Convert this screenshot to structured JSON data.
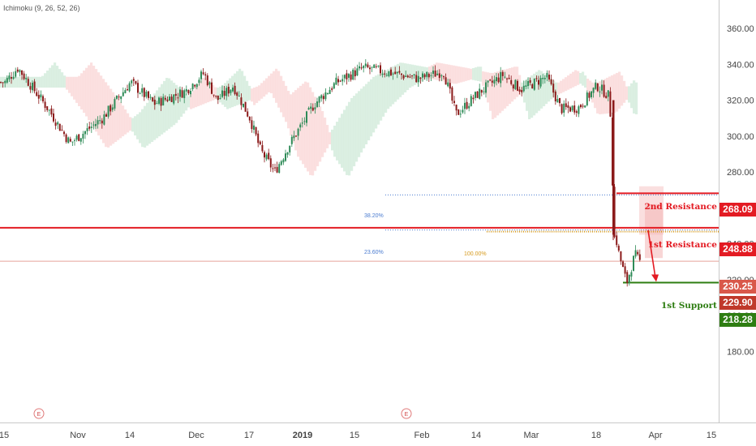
{
  "indicator": {
    "label": "Ichimoku (9, 26, 52, 26)"
  },
  "price_axis": {
    "ticks": [
      "360.00",
      "340.00",
      "320.00",
      "300.00",
      "280.00",
      "260.00",
      "240.00",
      "220.00",
      "200.00",
      "180.00"
    ],
    "tick_values": [
      360,
      340,
      320,
      300,
      280,
      260,
      240,
      220,
      200,
      180
    ]
  },
  "time_axis": {
    "labels": [
      "15",
      "Nov",
      "14",
      "Dec",
      "17",
      "2019",
      "15",
      "Feb",
      "14",
      "Mar",
      "18",
      "Apr",
      "15"
    ],
    "bold_label": "2019"
  },
  "levels": {
    "resistance_2": {
      "label": "2nd Resistance",
      "price": "268.09",
      "value": 268.09,
      "color": "#e31b23"
    },
    "resistance_1": {
      "label": "1st Resistance",
      "price": "248.88",
      "value": 248.88,
      "color": "#e31b23"
    },
    "support_1": {
      "label": "1st Support",
      "price": "218.28",
      "value": 218.28,
      "color": "#2e7d12"
    }
  },
  "current_prices": {
    "last": "230.25",
    "last_value": 230.25,
    "last_color": "#d9584a",
    "close": "229.90",
    "close_value": 229.9,
    "close_color": "#c0392b"
  },
  "fibonacci": {
    "fib_38": {
      "label": "38.20%",
      "value": 267.2,
      "color": "#4a7bd0"
    },
    "fib_23": {
      "label": "23.60%",
      "value": 247.6,
      "color": "#4a7bd0"
    },
    "fib_100": {
      "label": "100.00%",
      "value": 247.6,
      "color": "#d69a1e"
    }
  },
  "event_markers": [
    "E",
    "E"
  ],
  "colors": {
    "up": "#2e8b57",
    "down": "#8b1a1a",
    "cloud_bull": "#cfe9d8",
    "cloud_bear": "#f9d5d5"
  },
  "chart_data": {
    "type": "candlestick",
    "ylim": [
      160,
      375
    ],
    "approx_close_path": [
      {
        "t": "Oct 15",
        "v": 330
      },
      {
        "t": "Oct 18",
        "v": 338
      },
      {
        "t": "Oct 25",
        "v": 315
      },
      {
        "t": "Oct 30",
        "v": 296
      },
      {
        "t": "Nov 7",
        "v": 310
      },
      {
        "t": "Nov 14",
        "v": 330
      },
      {
        "t": "Nov 20",
        "v": 318
      },
      {
        "t": "Nov 28",
        "v": 325
      },
      {
        "t": "Dec 3",
        "v": 335
      },
      {
        "t": "Dec 7",
        "v": 320
      },
      {
        "t": "Dec 12",
        "v": 328
      },
      {
        "t": "Dec 17",
        "v": 310
      },
      {
        "t": "Dec 20",
        "v": 292
      },
      {
        "t": "Dec 24",
        "v": 280
      },
      {
        "t": "Dec 28",
        "v": 295
      },
      {
        "t": "Jan 4",
        "v": 318
      },
      {
        "t": "Jan 10",
        "v": 330
      },
      {
        "t": "Jan 17",
        "v": 338
      },
      {
        "t": "Jan 24",
        "v": 335
      },
      {
        "t": "Jan 30",
        "v": 332
      },
      {
        "t": "Feb 5",
        "v": 336
      },
      {
        "t": "Feb 8",
        "v": 312
      },
      {
        "t": "Feb 14",
        "v": 325
      },
      {
        "t": "Feb 20",
        "v": 334
      },
      {
        "t": "Feb 25",
        "v": 326
      },
      {
        "t": "Mar 4",
        "v": 333
      },
      {
        "t": "Mar 8",
        "v": 315
      },
      {
        "t": "Mar 13",
        "v": 316
      },
      {
        "t": "Mar 18",
        "v": 328
      },
      {
        "t": "Mar 21",
        "v": 322
      },
      {
        "t": "Mar 22",
        "v": 245
      },
      {
        "t": "Mar 25",
        "v": 218
      },
      {
        "t": "Mar 27",
        "v": 234
      },
      {
        "t": "Mar 28",
        "v": 230
      }
    ],
    "projection": {
      "from": 248.88,
      "to": 218.28
    },
    "grid": false
  }
}
